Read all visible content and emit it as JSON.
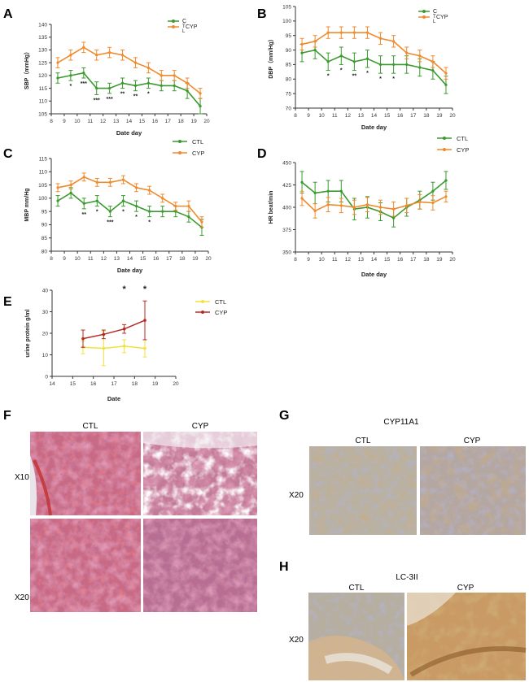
{
  "colors": {
    "ctl": "#3a9a2e",
    "cyp": "#f08a2c",
    "ctl_e": "#f2e23a",
    "cyp_e": "#b52a22",
    "axis": "#333333"
  },
  "chart_data": [
    {
      "panel": "A",
      "type": "line",
      "ylabel": "SBP（mmHg）",
      "xlabel": "Date day",
      "xlim": [
        8,
        20
      ],
      "ylim": [
        105,
        140
      ],
      "xticks": [
        "8",
        "9",
        "10",
        "11",
        "12",
        "13",
        "14",
        "15",
        "16",
        "17",
        "18",
        "19",
        "20"
      ],
      "yticks": [
        "105",
        "110",
        "115",
        "120",
        "125",
        "130",
        "135",
        "140"
      ],
      "legend": [
        "C",
        "T",
        "L",
        "CYP"
      ],
      "x": [
        8.5,
        9.5,
        10.5,
        11.5,
        12.5,
        13.5,
        14.5,
        15.5,
        16.5,
        17.5,
        18.5,
        19.5
      ],
      "series": [
        {
          "name": "C",
          "values": [
            119,
            120,
            121,
            115,
            115,
            117,
            116,
            117,
            116,
            116,
            114,
            108
          ],
          "err": [
            2,
            2,
            2,
            2.5,
            2,
            2,
            2,
            2,
            2,
            2,
            3,
            3
          ]
        },
        {
          "name": "CYP",
          "values": [
            125,
            128,
            131,
            128,
            129,
            128,
            125,
            123,
            120,
            120,
            117,
            113
          ],
          "err": [
            2,
            2,
            2,
            2,
            2,
            2,
            2,
            2,
            2,
            2,
            2,
            2
          ]
        }
      ],
      "sig_x": [
        9.5,
        10.5,
        11.5,
        12.5,
        13.5,
        14.5,
        15.5
      ],
      "sig": [
        "*",
        "***",
        "***",
        "***",
        "**",
        "**",
        "*"
      ]
    },
    {
      "panel": "B",
      "type": "line",
      "ylabel": "DBP（mm/Hg）",
      "xlabel": "Date day",
      "xlim": [
        8,
        20
      ],
      "ylim": [
        70,
        105
      ],
      "xticks": [
        "8",
        "9",
        "10",
        "11",
        "12",
        "13",
        "14",
        "15",
        "16",
        "17",
        "18",
        "19",
        "20"
      ],
      "yticks": [
        "70",
        "75",
        "80",
        "85",
        "90",
        "95",
        "100",
        "105"
      ],
      "legend": [
        "C",
        "T",
        "L",
        "CYP"
      ],
      "x": [
        8.5,
        9.5,
        10.5,
        11.5,
        12.5,
        13.5,
        14.5,
        15.5,
        16.5,
        17.5,
        18.5,
        19.5
      ],
      "series": [
        {
          "name": "C",
          "values": [
            89,
            90,
            86,
            88,
            86,
            87,
            85,
            85,
            85,
            84,
            83,
            78
          ],
          "err": [
            3,
            3,
            3,
            3,
            3,
            3,
            3,
            3,
            3,
            3,
            3,
            3
          ]
        },
        {
          "name": "CYP",
          "values": [
            92,
            93,
            96,
            96,
            96,
            96,
            94,
            93,
            89,
            88,
            86,
            82
          ],
          "err": [
            2,
            2,
            2,
            2,
            2,
            2,
            2,
            2,
            2,
            2,
            2,
            2
          ]
        }
      ],
      "sig_x": [
        10.5,
        11.5,
        12.5,
        13.5,
        14.5,
        15.5
      ],
      "sig": [
        "*",
        "*",
        "**",
        "*",
        "*",
        "*"
      ]
    },
    {
      "panel": "C",
      "type": "line",
      "ylabel": "MBP mm/Hg",
      "xlabel": "Date day",
      "xlim": [
        8,
        20
      ],
      "ylim": [
        80,
        115
      ],
      "xticks": [
        "8",
        "9",
        "10",
        "11",
        "12",
        "13",
        "14",
        "15",
        "16",
        "17",
        "18",
        "19",
        "20"
      ],
      "yticks": [
        "80",
        "85",
        "90",
        "95",
        "100",
        "105",
        "110",
        "115"
      ],
      "legend": [
        "CTL",
        "CYP"
      ],
      "x": [
        8.5,
        9.5,
        10.5,
        11.5,
        12.5,
        13.5,
        14.5,
        15.5,
        16.5,
        17.5,
        18.5,
        19.5
      ],
      "series": [
        {
          "name": "CTL",
          "values": [
            99,
            102,
            98,
            99,
            95,
            99,
            97,
            95,
            95,
            95,
            93,
            89
          ],
          "err": [
            2,
            2,
            2,
            2,
            2,
            2,
            2,
            2,
            2,
            2,
            2,
            3
          ]
        },
        {
          "name": "CYP",
          "values": [
            104,
            105,
            108,
            106,
            106,
            107,
            104,
            103,
            100,
            97,
            97,
            91
          ],
          "err": [
            1.5,
            1.5,
            1.5,
            1.5,
            1.5,
            1.5,
            1.5,
            1.5,
            1.5,
            1.5,
            2,
            2
          ]
        }
      ],
      "sig_x": [
        10.5,
        11.5,
        12.5,
        13.5,
        14.5,
        15.5
      ],
      "sig": [
        "**",
        "*",
        "***",
        "*",
        "*",
        "*"
      ]
    },
    {
      "panel": "D",
      "type": "line",
      "ylabel": "HR beat/min",
      "xlabel": "Date day",
      "xlim": [
        8,
        20
      ],
      "ylim": [
        350,
        450
      ],
      "xticks": [
        "8",
        "9",
        "10",
        "11",
        "12",
        "13",
        "14",
        "15",
        "16",
        "17",
        "18",
        "19",
        "20"
      ],
      "yticks": [
        "350",
        "375",
        "400",
        "425",
        "450"
      ],
      "legend": [
        "CTL",
        "CYP"
      ],
      "x": [
        8.5,
        9.5,
        10.5,
        11.5,
        12.5,
        13.5,
        14.5,
        15.5,
        16.5,
        17.5,
        18.5,
        19.5
      ],
      "series": [
        {
          "name": "CTL",
          "values": [
            428,
            416,
            418,
            418,
            398,
            400,
            395,
            388,
            400,
            408,
            418,
            430
          ],
          "err": [
            12,
            12,
            12,
            12,
            12,
            12,
            10,
            10,
            10,
            10,
            10,
            10
          ]
        },
        {
          "name": "CYP",
          "values": [
            410,
            396,
            403,
            402,
            400,
            403,
            400,
            398,
            402,
            406,
            405,
            412
          ],
          "err": [
            8,
            8,
            8,
            8,
            8,
            8,
            8,
            8,
            8,
            8,
            8,
            6
          ]
        }
      ],
      "sig_x": [],
      "sig": []
    },
    {
      "panel": "E",
      "type": "line",
      "ylabel": "urine protein g/ml",
      "xlabel": "Date",
      "xlim": [
        14,
        20
      ],
      "ylim": [
        0,
        40
      ],
      "xticks": [
        "14",
        "15",
        "16",
        "17",
        "18",
        "19",
        "20"
      ],
      "yticks": [
        "0",
        "10",
        "20",
        "30",
        "40"
      ],
      "legend": [
        "CTL",
        "CYP"
      ],
      "x": [
        15.5,
        16.5,
        17.5,
        18.5
      ],
      "series": [
        {
          "name": "CTL",
          "values": [
            13.5,
            13,
            14,
            13
          ],
          "err": [
            3,
            8,
            3,
            4
          ]
        },
        {
          "name": "CYP",
          "values": [
            17.5,
            19.5,
            22,
            26
          ],
          "err": [
            4,
            2,
            2,
            9
          ]
        }
      ],
      "sig_x": [
        17.5,
        18.5
      ],
      "sig": [
        "*",
        "*"
      ]
    }
  ],
  "panels": {
    "A": "A",
    "B": "B",
    "C": "C",
    "D": "D",
    "E": "E",
    "F": "F",
    "G": "G",
    "H": "H"
  },
  "histology": {
    "F": {
      "col1": "CTL",
      "col2": "CYP",
      "row1": "X10",
      "row2": "X20"
    },
    "G": {
      "title": "CYP11A1",
      "col1": "CTL",
      "col2": "CYP",
      "row1": "X20"
    },
    "H": {
      "title": "LC-3II",
      "col1": "CTL",
      "col2": "CYP",
      "row1": "X20"
    }
  }
}
